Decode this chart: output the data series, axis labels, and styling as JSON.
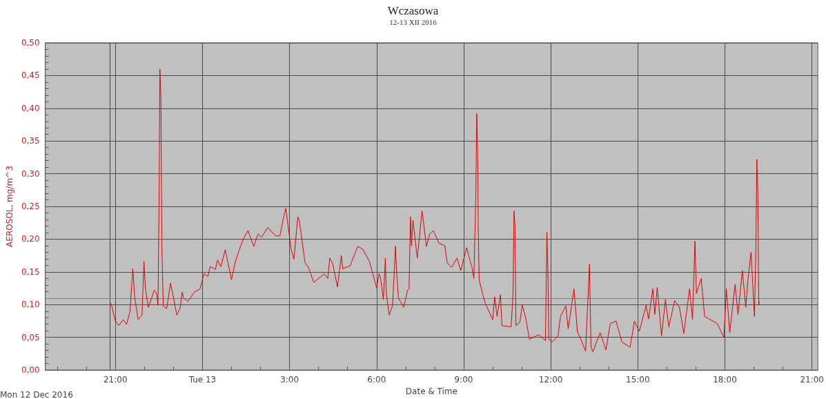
{
  "chart_data": {
    "type": "line",
    "title": "Wczasowa",
    "subtitle": "12-13 XII 2016",
    "xlabel": "Date & Time",
    "ylabel": "AEROSOL, mg/m^3",
    "annotations": [
      "Mon 12 Dec 2016"
    ],
    "x": [
      "2016-12-12T20:49",
      "2016-12-12T20:52",
      "2016-12-12T21:00",
      "2016-12-12T21:07",
      "2016-12-12T21:16",
      "2016-12-12T21:23",
      "2016-12-12T21:30",
      "2016-12-12T21:36",
      "2016-12-12T21:40",
      "2016-12-12T21:47",
      "2016-12-12T21:55",
      "2016-12-12T21:59",
      "2016-12-12T22:02",
      "2016-12-12T22:08",
      "2016-12-12T22:15",
      "2016-12-12T22:20",
      "2016-12-12T22:25",
      "2016-12-12T22:28",
      "2016-12-12T22:30",
      "2016-12-12T22:32",
      "2016-12-12T22:34",
      "2016-12-12T22:36",
      "2016-12-12T22:39",
      "2016-12-12T22:46",
      "2016-12-12T22:54",
      "2016-12-12T23:07",
      "2016-12-12T23:14",
      "2016-12-12T23:18",
      "2016-12-12T23:21",
      "2016-12-12T23:30",
      "2016-12-12T23:43",
      "2016-12-12T23:55",
      "2016-12-13T00:03",
      "2016-12-13T00:11",
      "2016-12-13T00:16",
      "2016-12-13T00:27",
      "2016-12-13T00:31",
      "2016-12-13T00:38",
      "2016-12-13T00:47",
      "2016-12-13T01:00",
      "2016-12-13T01:08",
      "2016-12-13T01:20",
      "2016-12-13T01:25",
      "2016-12-13T01:34",
      "2016-12-13T01:46",
      "2016-12-13T01:55",
      "2016-12-13T02:02",
      "2016-12-13T02:15",
      "2016-12-13T02:31",
      "2016-12-13T02:40",
      "2016-12-13T02:47",
      "2016-12-13T02:52",
      "2016-12-13T02:56",
      "2016-12-13T03:03",
      "2016-12-13T03:09",
      "2016-12-13T03:17",
      "2016-12-13T03:20",
      "2016-12-13T03:32",
      "2016-12-13T03:39",
      "2016-12-13T03:50",
      "2016-12-13T04:12",
      "2016-12-13T04:19",
      "2016-12-13T04:23",
      "2016-12-13T04:29",
      "2016-12-13T04:39",
      "2016-12-13T04:47",
      "2016-12-13T04:50",
      "2016-12-13T05:05",
      "2016-12-13T05:21",
      "2016-12-13T05:31",
      "2016-12-13T05:45",
      "2016-12-13T06:00",
      "2016-12-13T06:05",
      "2016-12-13T06:08",
      "2016-12-13T06:14",
      "2016-12-13T06:18",
      "2016-12-13T06:20",
      "2016-12-13T06:26",
      "2016-12-13T06:33",
      "2016-12-13T06:39",
      "2016-12-13T06:41",
      "2016-12-13T06:45",
      "2016-12-13T06:56",
      "2016-12-13T07:04",
      "2016-12-13T07:07",
      "2016-12-13T07:10",
      "2016-12-13T07:12",
      "2016-12-13T07:15",
      "2016-12-13T07:24",
      "2016-12-13T07:34",
      "2016-12-13T07:43",
      "2016-12-13T07:50",
      "2016-12-13T07:57",
      "2016-12-13T08:09",
      "2016-12-13T08:21",
      "2016-12-13T08:26",
      "2016-12-13T08:35",
      "2016-12-13T08:46",
      "2016-12-13T08:54",
      "2016-12-13T09:06",
      "2016-12-13T09:17",
      "2016-12-13T09:21",
      "2016-12-13T09:25",
      "2016-12-13T09:27",
      "2016-12-13T09:29",
      "2016-12-13T09:30",
      "2016-12-13T09:32",
      "2016-12-13T09:39",
      "2016-12-13T09:44",
      "2016-12-13T10:00",
      "2016-12-13T10:04",
      "2016-12-13T10:09",
      "2016-12-13T10:16",
      "2016-12-13T10:19",
      "2016-12-13T10:38",
      "2016-12-13T10:42",
      "2016-12-13T10:44",
      "2016-12-13T10:46",
      "2016-12-13T10:48",
      "2016-12-13T10:56",
      "2016-12-13T11:01",
      "2016-12-13T11:08",
      "2016-12-13T11:16",
      "2016-12-13T11:35",
      "2016-12-13T11:49",
      "2016-12-13T11:52",
      "2016-12-13T11:54",
      "2016-12-13T11:56",
      "2016-12-13T12:03",
      "2016-12-13T12:15",
      "2016-12-13T12:20",
      "2016-12-13T12:31",
      "2016-12-13T12:36",
      "2016-12-13T12:48",
      "2016-12-13T12:55",
      "2016-12-13T13:02",
      "2016-12-13T13:12",
      "2016-12-13T13:20",
      "2016-12-13T13:23",
      "2016-12-13T13:27",
      "2016-12-13T13:42",
      "2016-12-13T13:54",
      "2016-12-13T14:03",
      "2016-12-13T14:15",
      "2016-12-13T14:27",
      "2016-12-13T14:44",
      "2016-12-13T14:53",
      "2016-12-13T15:03",
      "2016-12-13T15:17",
      "2016-12-13T15:22",
      "2016-12-13T15:31",
      "2016-12-13T15:35",
      "2016-12-13T15:40",
      "2016-12-13T15:49",
      "2016-12-13T15:57",
      "2016-12-13T16:04",
      "2016-12-13T16:16",
      "2016-12-13T16:26",
      "2016-12-13T16:35",
      "2016-12-13T16:47",
      "2016-12-13T16:53",
      "2016-12-13T16:58",
      "2016-12-13T17:01",
      "2016-12-13T17:11",
      "2016-12-13T17:18",
      "2016-12-13T17:30",
      "2016-12-13T17:44",
      "2016-12-13T17:58",
      "2016-12-13T18:03",
      "2016-12-13T18:10",
      "2016-12-13T18:21",
      "2016-12-13T18:27",
      "2016-12-13T18:36",
      "2016-12-13T18:43",
      "2016-12-13T18:48",
      "2016-12-13T18:54",
      "2016-12-13T19:01",
      "2016-12-13T19:04",
      "2016-12-13T19:06",
      "2016-12-13T19:08",
      "2016-12-13T19:10",
      "2016-12-13T19:11"
    ],
    "series": [
      {
        "color": "#e00000",
        "values": [
          0.103,
          0.099,
          0.075,
          0.068,
          0.077,
          0.07,
          0.089,
          0.155,
          0.11,
          0.077,
          0.084,
          0.166,
          0.124,
          0.096,
          0.11,
          0.122,
          0.117,
          0.099,
          0.24,
          0.46,
          0.416,
          0.187,
          0.098,
          0.094,
          0.133,
          0.084,
          0.095,
          0.119,
          0.11,
          0.105,
          0.119,
          0.124,
          0.147,
          0.143,
          0.158,
          0.154,
          0.168,
          0.158,
          0.184,
          0.138,
          0.166,
          0.192,
          0.201,
          0.213,
          0.189,
          0.208,
          0.203,
          0.218,
          0.205,
          0.205,
          0.231,
          0.247,
          0.226,
          0.185,
          0.169,
          0.234,
          0.229,
          0.164,
          0.157,
          0.134,
          0.147,
          0.14,
          0.171,
          0.163,
          0.127,
          0.175,
          0.155,
          0.159,
          0.189,
          0.185,
          0.166,
          0.126,
          0.147,
          0.141,
          0.108,
          0.171,
          0.117,
          0.084,
          0.099,
          0.189,
          0.152,
          0.11,
          0.096,
          0.122,
          0.124,
          0.234,
          0.19,
          0.229,
          0.171,
          0.243,
          0.189,
          0.208,
          0.213,
          0.194,
          0.19,
          0.164,
          0.157,
          0.171,
          0.152,
          0.187,
          0.157,
          0.14,
          0.264,
          0.392,
          0.325,
          0.217,
          0.138,
          0.117,
          0.103,
          0.077,
          0.112,
          0.082,
          0.115,
          0.068,
          0.066,
          0.117,
          0.243,
          0.218,
          0.068,
          0.073,
          0.099,
          0.08,
          0.047,
          0.054,
          0.045,
          0.211,
          0.152,
          0.047,
          0.043,
          0.052,
          0.082,
          0.098,
          0.063,
          0.124,
          0.059,
          0.047,
          0.029,
          0.162,
          0.036,
          0.028,
          0.057,
          0.031,
          0.071,
          0.075,
          0.043,
          0.035,
          0.075,
          0.059,
          0.099,
          0.078,
          0.124,
          0.085,
          0.126,
          0.052,
          0.108,
          0.066,
          0.106,
          0.096,
          0.056,
          0.124,
          0.077,
          0.197,
          0.117,
          0.14,
          0.082,
          0.077,
          0.071,
          0.05,
          0.124,
          0.057,
          0.131,
          0.085,
          0.152,
          0.096,
          0.141,
          0.18,
          0.082,
          0.19,
          0.322,
          0.274,
          0.099,
          0.105
        ]
      }
    ],
    "xlim": [
      "2016-12-12T18:35",
      "2016-12-13T21:12"
    ],
    "xticks": [
      {
        "value": "2016-12-12T19:00",
        "label": null
      },
      {
        "value": "2016-12-12T20:00",
        "label": null
      },
      {
        "value": "2016-12-12T21:00",
        "label": "21:00"
      },
      {
        "value": "2016-12-12T22:00",
        "label": null
      },
      {
        "value": "2016-12-12T23:00",
        "label": null
      },
      {
        "value": "2016-12-13T00:00",
        "label": "Tue 13"
      },
      {
        "value": "2016-12-13T01:00",
        "label": null
      },
      {
        "value": "2016-12-13T02:00",
        "label": null
      },
      {
        "value": "2016-12-13T03:00",
        "label": "3:00"
      },
      {
        "value": "2016-12-13T04:00",
        "label": null
      },
      {
        "value": "2016-12-13T05:00",
        "label": null
      },
      {
        "value": "2016-12-13T06:00",
        "label": "6:00"
      },
      {
        "value": "2016-12-13T07:00",
        "label": null
      },
      {
        "value": "2016-12-13T08:00",
        "label": null
      },
      {
        "value": "2016-12-13T09:00",
        "label": "9:00"
      },
      {
        "value": "2016-12-13T10:00",
        "label": null
      },
      {
        "value": "2016-12-13T11:00",
        "label": null
      },
      {
        "value": "2016-12-13T12:00",
        "label": "12:00"
      },
      {
        "value": "2016-12-13T13:00",
        "label": null
      },
      {
        "value": "2016-12-13T14:00",
        "label": null
      },
      {
        "value": "2016-12-13T15:00",
        "label": "15:00"
      },
      {
        "value": "2016-12-13T16:00",
        "label": null
      },
      {
        "value": "2016-12-13T17:00",
        "label": null
      },
      {
        "value": "2016-12-13T18:00",
        "label": "18:00"
      },
      {
        "value": "2016-12-13T19:00",
        "label": null
      },
      {
        "value": "2016-12-13T20:00",
        "label": null
      },
      {
        "value": "2016-12-13T21:00",
        "label": "21:00"
      }
    ],
    "ylim": [
      0,
      0.5
    ],
    "yticks": [
      {
        "value": 0,
        "label": "0,00"
      },
      {
        "value": 0.01,
        "label": null
      },
      {
        "value": 0.02,
        "label": null
      },
      {
        "value": 0.03,
        "label": null
      },
      {
        "value": 0.04,
        "label": null
      },
      {
        "value": 0.05,
        "label": "0,05"
      },
      {
        "value": 0.06,
        "label": null
      },
      {
        "value": 0.07,
        "label": null
      },
      {
        "value": 0.08,
        "label": null
      },
      {
        "value": 0.09,
        "label": null
      },
      {
        "value": 0.1,
        "label": "0,10"
      },
      {
        "value": 0.11,
        "label": null
      },
      {
        "value": 0.12,
        "label": null
      },
      {
        "value": 0.13,
        "label": null
      },
      {
        "value": 0.14,
        "label": null
      },
      {
        "value": 0.15,
        "label": "0,15"
      },
      {
        "value": 0.16,
        "label": null
      },
      {
        "value": 0.17,
        "label": null
      },
      {
        "value": 0.18,
        "label": null
      },
      {
        "value": 0.19,
        "label": null
      },
      {
        "value": 0.2,
        "label": "0,20"
      },
      {
        "value": 0.21,
        "label": null
      },
      {
        "value": 0.22,
        "label": null
      },
      {
        "value": 0.23,
        "label": null
      },
      {
        "value": 0.24,
        "label": null
      },
      {
        "value": 0.25,
        "label": "0,25"
      },
      {
        "value": 0.26,
        "label": null
      },
      {
        "value": 0.27,
        "label": null
      },
      {
        "value": 0.28,
        "label": null
      },
      {
        "value": 0.29,
        "label": null
      },
      {
        "value": 0.3,
        "label": "0,30"
      },
      {
        "value": 0.31,
        "label": null
      },
      {
        "value": 0.32,
        "label": null
      },
      {
        "value": 0.33,
        "label": null
      },
      {
        "value": 0.34,
        "label": null
      },
      {
        "value": 0.35,
        "label": "0,35"
      },
      {
        "value": 0.36,
        "label": null
      },
      {
        "value": 0.37,
        "label": null
      },
      {
        "value": 0.38,
        "label": null
      },
      {
        "value": 0.39,
        "label": null
      },
      {
        "value": 0.4,
        "label": "0,40"
      },
      {
        "value": 0.41,
        "label": null
      },
      {
        "value": 0.42,
        "label": null
      },
      {
        "value": 0.43,
        "label": null
      },
      {
        "value": 0.44,
        "label": null
      },
      {
        "value": 0.45,
        "label": "0,45"
      },
      {
        "value": 0.46,
        "label": null
      },
      {
        "value": 0.47,
        "label": null
      },
      {
        "value": 0.48,
        "label": null
      },
      {
        "value": 0.49,
        "label": null
      },
      {
        "value": 0.5,
        "label": "0,50"
      }
    ],
    "ref_lines": [
      {
        "axis": "x",
        "value": "2016-12-12T20:49",
        "color": "#404040"
      },
      {
        "axis": "y",
        "value": 0.11,
        "color": "#808080"
      }
    ],
    "grid": true
  }
}
